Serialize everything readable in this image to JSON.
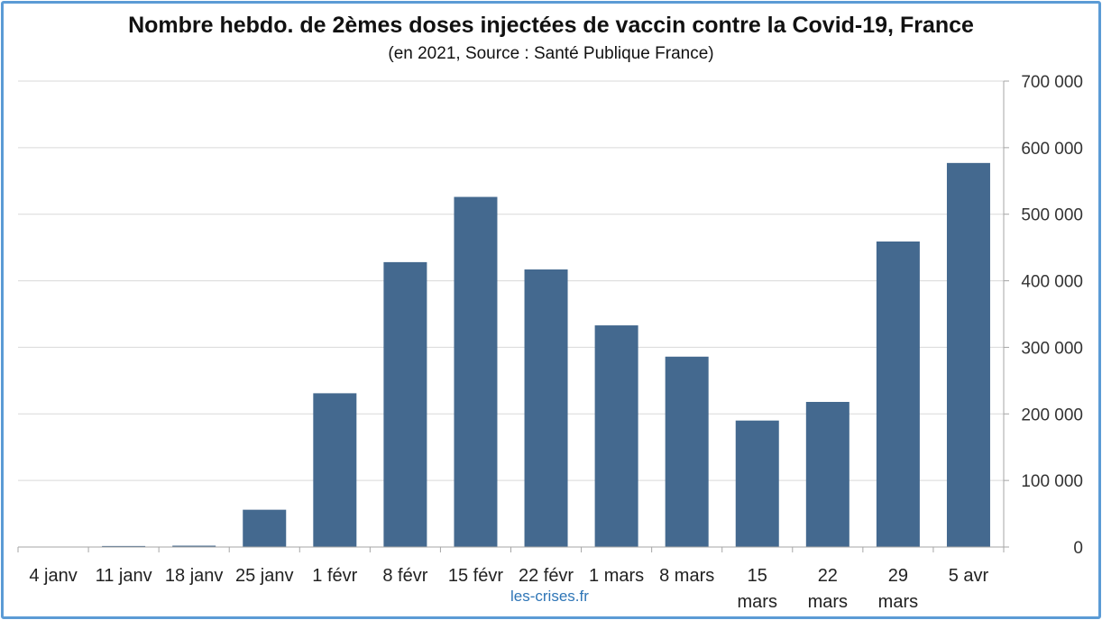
{
  "chart_data": {
    "type": "bar",
    "title": "Nombre hebdo. de 2èmes doses injectées de vaccin contre la Covid-19, France",
    "subtitle": "(en 2021, Source : Santé Publique France)",
    "xlabel": "",
    "ylabel": "",
    "categories": [
      "4 janv",
      "11 janv",
      "18 janv",
      "25 janv",
      "1 févr",
      "8 févr",
      "15 févr",
      "22 févr",
      "1 mars",
      "8 mars",
      "15 mars",
      "22 mars",
      "29 mars",
      "5 avr"
    ],
    "values": [
      0,
      1500,
      2000,
      56000,
      231000,
      428000,
      526000,
      417000,
      333000,
      286000,
      190000,
      218000,
      459000,
      577000
    ],
    "ylim": [
      0,
      700000
    ],
    "yticks": [
      0,
      100000,
      200000,
      300000,
      400000,
      500000,
      600000,
      700000
    ],
    "ytick_labels": [
      "0",
      "100 000",
      "200 000",
      "300 000",
      "400 000",
      "500 000",
      "600 000",
      "700 000"
    ],
    "y_axis_side": "right",
    "grid": true,
    "legend": "none",
    "bar_color": "#44698f"
  },
  "watermark": "les-crises.fr",
  "colors": {
    "frame": "#5b9bd5",
    "grid": "#d9d9d9",
    "axis": "#a6a6a6"
  }
}
